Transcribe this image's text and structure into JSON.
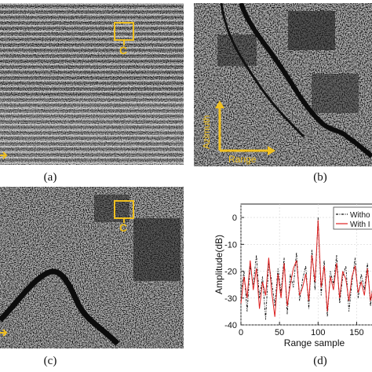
{
  "panels": {
    "a": {
      "caption": "(a)",
      "roi_label": "C"
    },
    "b": {
      "caption": "(b)",
      "arrow_azimuth": "Azimuth",
      "arrow_range": "Range"
    },
    "c": {
      "caption": "(c)",
      "roi_label": "C"
    },
    "d": {
      "caption": "(d)"
    }
  },
  "colors": {
    "annotation": "#f0c020",
    "series_with": "#dd2222",
    "series_without": "#111111"
  },
  "chart_data": {
    "type": "line",
    "xlabel": "Range sample",
    "ylabel": "Amplitude(dB)",
    "xticks": [
      0,
      50,
      100,
      150
    ],
    "yticks": [
      0,
      -10,
      -20,
      -30,
      -40
    ],
    "xlim": [
      0,
      175
    ],
    "ylim": [
      -40,
      5
    ],
    "legend_position": "top-right",
    "series": [
      {
        "name": "Witho",
        "style": "dash-dot",
        "x": [
          0,
          4,
          8,
          12,
          16,
          20,
          24,
          28,
          32,
          36,
          40,
          44,
          48,
          52,
          56,
          60,
          64,
          68,
          72,
          76,
          80,
          84,
          88,
          92,
          96,
          100,
          104,
          108,
          112,
          116,
          120,
          124,
          128,
          132,
          136,
          140,
          144,
          148,
          152,
          156,
          160,
          164,
          168,
          172,
          175
        ],
        "y": [
          -28,
          -20,
          -35,
          -18,
          -25,
          -14,
          -30,
          -22,
          -38,
          -17,
          -24,
          -33,
          -19,
          -28,
          -15,
          -36,
          -21,
          -26,
          -13,
          -31,
          -23,
          -18,
          -34,
          -12,
          -27,
          0,
          -29,
          -16,
          -37,
          -20,
          -25,
          -14,
          -32,
          -22,
          -18,
          -35,
          -24,
          -15,
          -30,
          -21,
          -27,
          -17,
          -33,
          -22,
          -26
        ]
      },
      {
        "name": "With I",
        "style": "solid",
        "x": [
          0,
          4,
          8,
          12,
          16,
          20,
          24,
          28,
          32,
          36,
          40,
          44,
          48,
          52,
          56,
          60,
          64,
          68,
          72,
          76,
          80,
          84,
          88,
          92,
          96,
          100,
          104,
          108,
          112,
          116,
          120,
          124,
          128,
          132,
          136,
          140,
          144,
          148,
          152,
          156,
          160,
          164,
          168,
          172,
          175
        ],
        "y": [
          -32,
          -22,
          -30,
          -16,
          -27,
          -19,
          -34,
          -24,
          -29,
          -15,
          -28,
          -37,
          -21,
          -30,
          -17,
          -33,
          -25,
          -19,
          -16,
          -29,
          -26,
          -21,
          -31,
          -14,
          -24,
          -1,
          -26,
          -18,
          -35,
          -22,
          -27,
          -17,
          -30,
          -20,
          -23,
          -31,
          -22,
          -18,
          -28,
          -24,
          -29,
          -19,
          -31,
          -25,
          -28
        ]
      }
    ]
  }
}
